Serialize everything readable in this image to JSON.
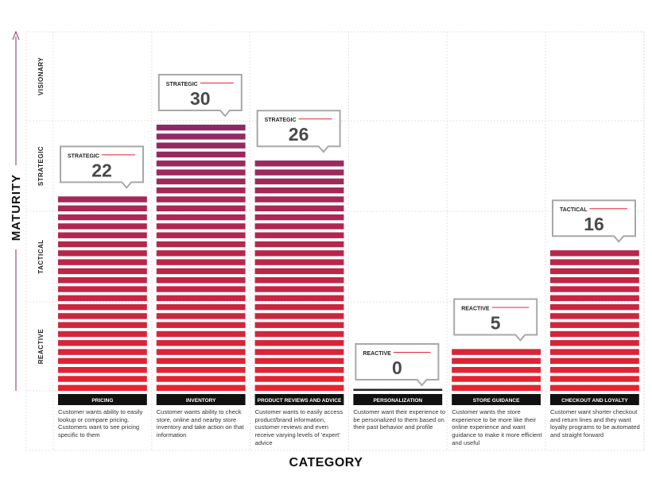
{
  "chart_data": {
    "type": "bar",
    "y_axis_title": "MATURITY",
    "x_axis_title": "CATEGORY",
    "maturity_levels": [
      "REACTIVE",
      "TACTICAL",
      "STRATEGIC",
      "VISIONARY"
    ],
    "categories": [
      "PRICING",
      "INVENTORY",
      "PRODUCT REVIEWS AND ADVICE",
      "PERSONALIZATION",
      "STORE GUIDANCE",
      "CHECKOUT AND LOYALTY"
    ],
    "values": [
      22,
      30,
      26,
      0,
      5,
      16
    ],
    "value_levels": [
      "STRATEGIC",
      "STRATEGIC",
      "STRATEGIC",
      "REACTIVE",
      "REACTIVE",
      "TACTICAL"
    ],
    "descriptions": [
      "Customer wants ability to easily lookup or compare pricing. Customers want to see pricing specific to them",
      "Customer wants ability to check store, online and nearby store inventory and take action on that information",
      "Customer wants to easily access product/brand information, customer reviews and even receive varying levels of 'expert' advice",
      "Customer want their experience to be personalized to them based on their past behavior and profile",
      "Customer wants the store experience to be more like their online experience and want guidance to make it more efficient and useful",
      "Customer want shorter checkout and return lines and they want loyalty programs to be automated and straight forward"
    ],
    "ylim": [
      0,
      40
    ],
    "grid": true,
    "colors": {
      "low": "#e8232e",
      "high": "#8c2a66",
      "label_bar": "#111111",
      "axis_arrow": "#8c2a66",
      "callout_rule": "#e8232e"
    }
  }
}
